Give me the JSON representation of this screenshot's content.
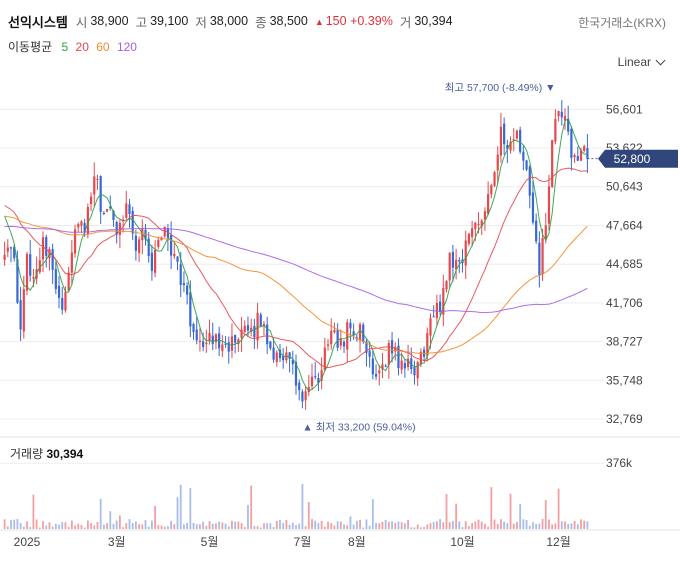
{
  "header": {
    "name": "선익시스템",
    "open_label": "시",
    "open": "38,900",
    "high_label": "고",
    "high": "39,100",
    "low_label": "저",
    "low": "38,000",
    "close_label": "종",
    "close": "38,500",
    "change_arrow": "▲",
    "change": "150",
    "change_pct": "+0.39%",
    "volume_label": "거",
    "volume": "30,394",
    "exchange": "한국거래소(KRX)"
  },
  "ma_legend": {
    "title": "이동평균",
    "items": [
      {
        "label": "5",
        "color": "#2ea043"
      },
      {
        "label": "20",
        "color": "#e5484d"
      },
      {
        "label": "60",
        "color": "#f08c2a"
      },
      {
        "label": "120",
        "color": "#a45ee5"
      }
    ]
  },
  "scale_selector": "Linear",
  "chart_data": {
    "type": "candlestick",
    "y_ticks": [
      "56,601",
      "53,622",
      "50,643",
      "47,664",
      "44,685",
      "41,706",
      "38,727",
      "35,748",
      "32,769"
    ],
    "y_tick_values": [
      56601,
      53622,
      50643,
      47664,
      44685,
      41706,
      38727,
      35748,
      32769
    ],
    "ylim": [
      31700,
      58700
    ],
    "x_ticks": [
      "2025",
      "3월",
      "5월",
      "7월",
      "8월",
      "10월",
      "12월"
    ],
    "x_tick_positions": [
      7,
      35,
      64,
      93,
      110,
      143,
      173
    ],
    "n_candles": 183,
    "price_path_keys": [
      [
        0,
        46200
      ],
      [
        3,
        44600
      ],
      [
        5,
        39200
      ],
      [
        7,
        45200
      ],
      [
        9,
        43700
      ],
      [
        12,
        46800
      ],
      [
        15,
        44200
      ],
      [
        18,
        41600
      ],
      [
        20,
        44500
      ],
      [
        23,
        48400
      ],
      [
        25,
        46700
      ],
      [
        28,
        51600
      ],
      [
        30,
        49300
      ],
      [
        33,
        48200
      ],
      [
        35,
        47400
      ],
      [
        38,
        49500
      ],
      [
        41,
        46200
      ],
      [
        43,
        47300
      ],
      [
        46,
        44600
      ],
      [
        50,
        47800
      ],
      [
        53,
        45100
      ],
      [
        56,
        43100
      ],
      [
        58,
        40100
      ],
      [
        61,
        39000
      ],
      [
        64,
        38600
      ],
      [
        68,
        39100
      ],
      [
        72,
        38200
      ],
      [
        76,
        39500
      ],
      [
        80,
        40300
      ],
      [
        84,
        37900
      ],
      [
        88,
        37800
      ],
      [
        91,
        35500
      ],
      [
        93,
        34300
      ],
      [
        96,
        35200
      ],
      [
        99,
        36300
      ],
      [
        101,
        39200
      ],
      [
        104,
        38600
      ],
      [
        108,
        39800
      ],
      [
        111,
        39300
      ],
      [
        114,
        37300
      ],
      [
        116,
        36400
      ],
      [
        118,
        37300
      ],
      [
        121,
        38300
      ],
      [
        124,
        36900
      ],
      [
        127,
        36500
      ],
      [
        130,
        37300
      ],
      [
        133,
        40200
      ],
      [
        136,
        41500
      ],
      [
        139,
        45200
      ],
      [
        142,
        44800
      ],
      [
        145,
        46800
      ],
      [
        149,
        48700
      ],
      [
        152,
        51000
      ],
      [
        155,
        54600
      ],
      [
        157,
        53000
      ],
      [
        160,
        54600
      ],
      [
        163,
        51800
      ],
      [
        165,
        47200
      ],
      [
        167,
        44400
      ],
      [
        169,
        47700
      ],
      [
        171,
        53500
      ],
      [
        173,
        56800
      ],
      [
        175,
        55300
      ],
      [
        177,
        53200
      ],
      [
        180,
        53500
      ],
      [
        182,
        52800
      ]
    ],
    "current_price": "52,800",
    "current_price_value": 52800,
    "high_annotation": {
      "label": "최고",
      "value": "57,700",
      "pct": "(-8.49%)",
      "price": 57700,
      "index": 173
    },
    "low_annotation": {
      "label": "최저",
      "value": "33,200",
      "pct": "(59.04%)",
      "price": 33200,
      "index": 93
    },
    "moving_averages": [
      5,
      20,
      60,
      120
    ],
    "volume": {
      "title": "거래량",
      "value": "30,394",
      "ref_label": "376k",
      "ref_value": 376000,
      "ylim": [
        0,
        520000
      ]
    },
    "colors": {
      "up": "#e5484d",
      "down": "#3867d6",
      "current_tag": "#30467a"
    },
    "grid": true
  }
}
